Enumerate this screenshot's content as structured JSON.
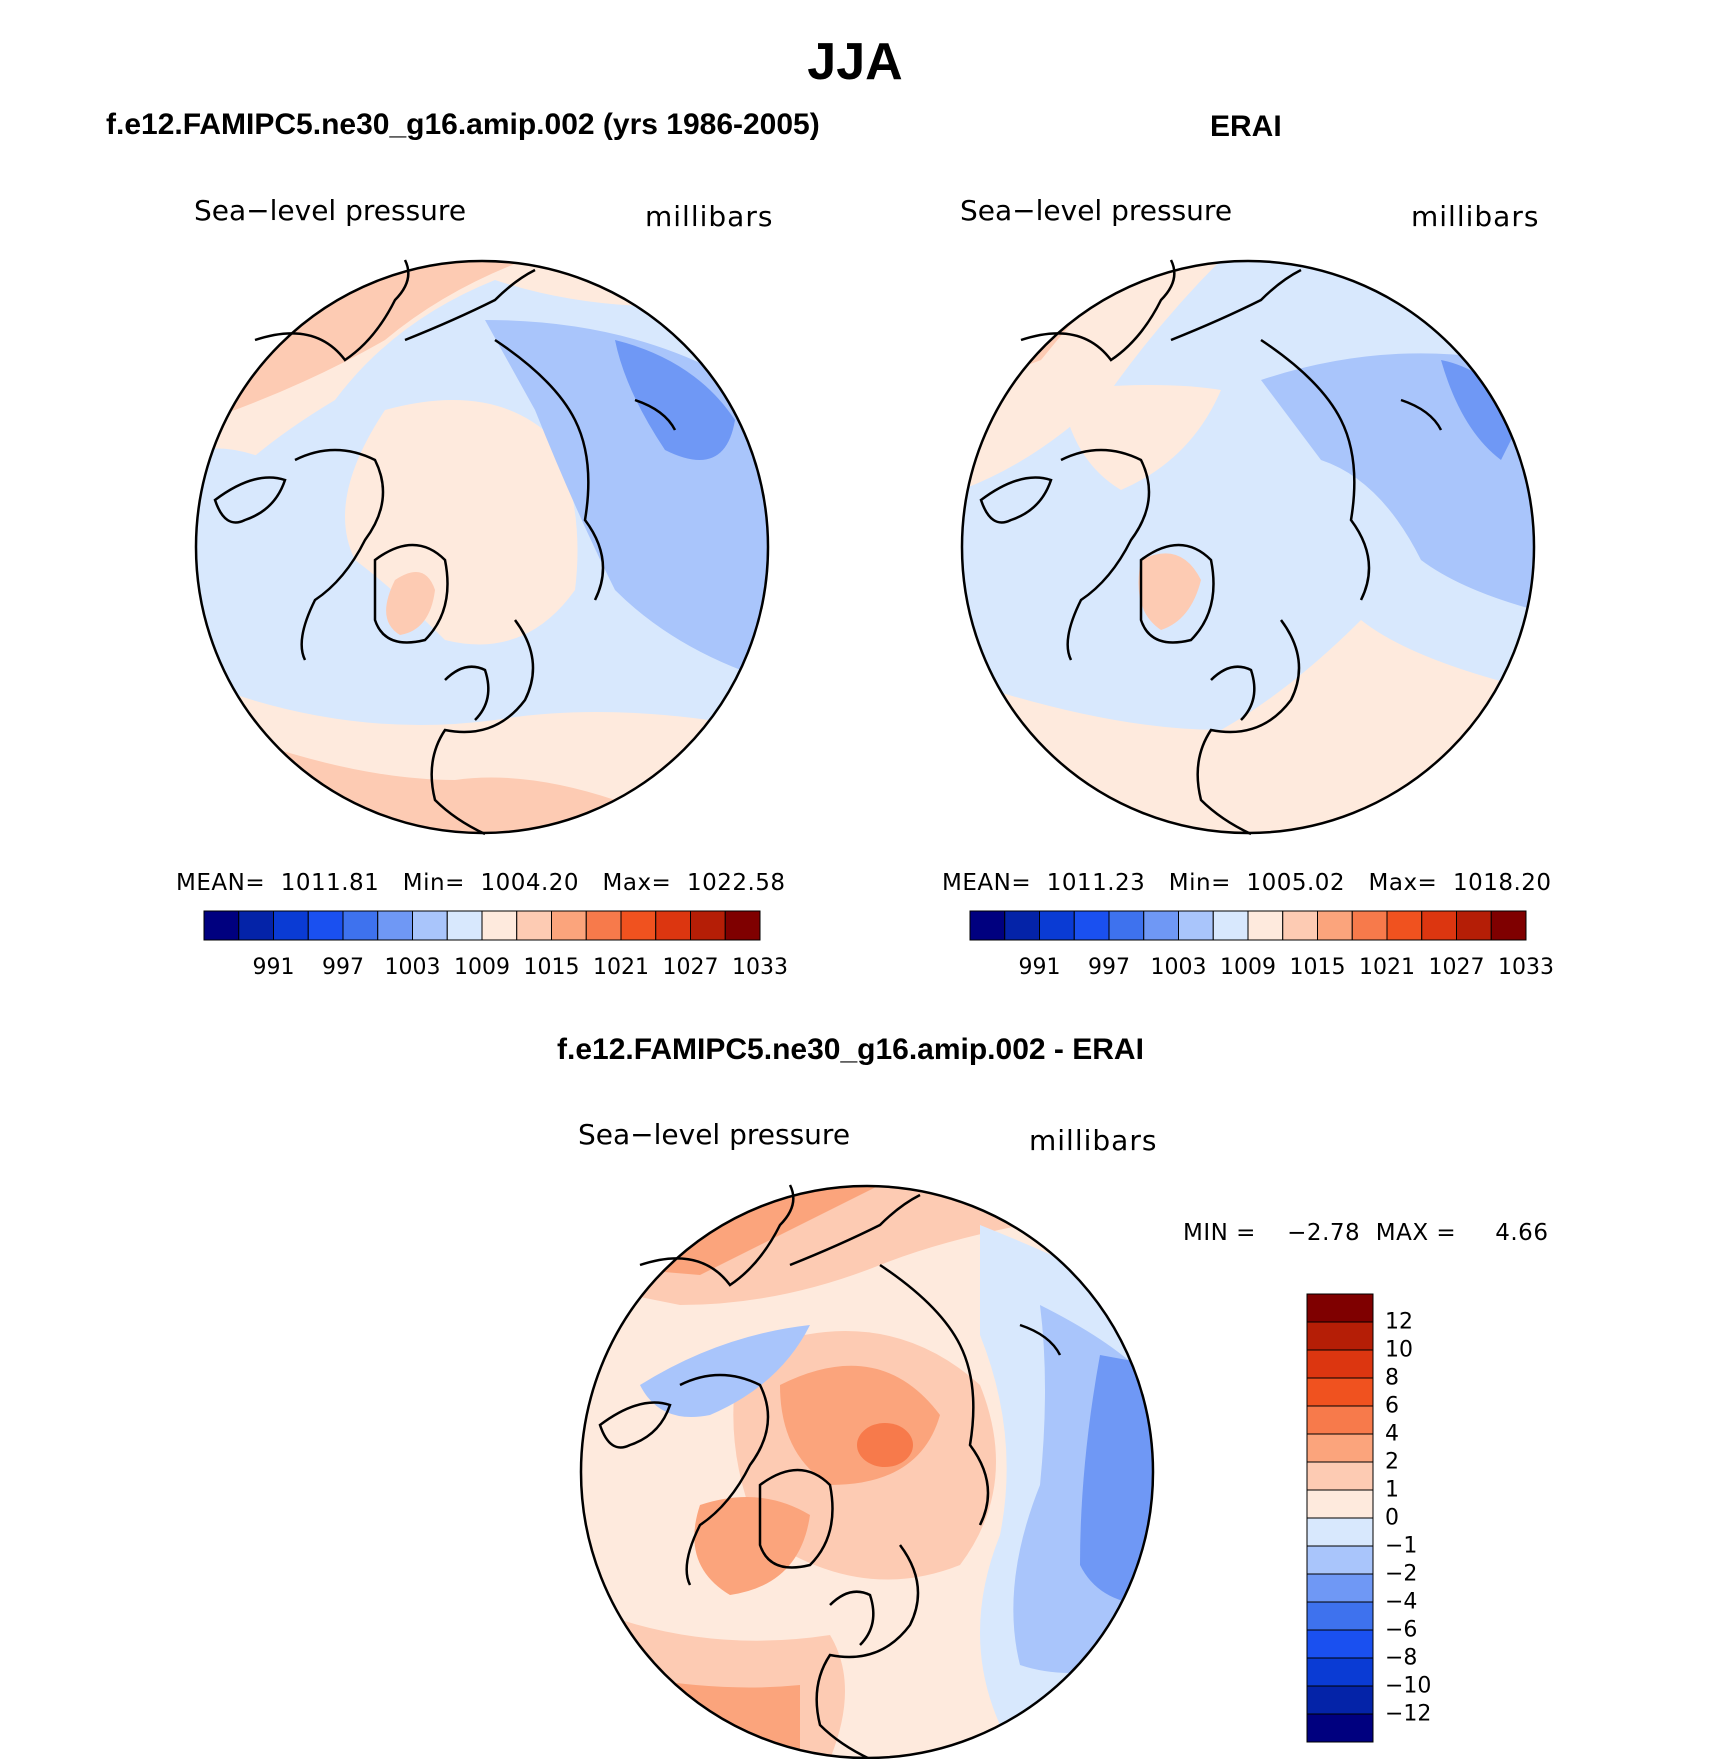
{
  "page": {
    "title": "JJA"
  },
  "colors": {
    "abs_scale": [
      "#00007f",
      "#0423a8",
      "#0a3bd4",
      "#1a50f0",
      "#3e72ee",
      "#6f98f5",
      "#a9c5fb",
      "#d8e8fd",
      "#feeadd",
      "#fdcbb3",
      "#fba47c",
      "#f77a4b",
      "#f0521f",
      "#dc3610",
      "#b51e06",
      "#7f0000"
    ],
    "diff_scale": [
      "#00007f",
      "#0423a8",
      "#0a3bd4",
      "#1a50f0",
      "#3e72ee",
      "#6f98f5",
      "#a9c5fb",
      "#d8e8fd",
      "#feeadd",
      "#fdcbb3",
      "#fba47c",
      "#f77a4b",
      "#f0521f",
      "#dc3610",
      "#b51e06",
      "#7f0000"
    ]
  },
  "panels": {
    "model": {
      "title": "f.e12.FAMIPC5.ne30_g16.amip.002 (yrs 1986-2005)",
      "variable": "Sea−level pressure",
      "units": "millibars",
      "stats": "MEAN=  1011.81   Min=  1004.20   Max=  1022.58",
      "colorbar_labels": [
        "991",
        "997",
        "1003",
        "1009",
        "1015",
        "1021",
        "1027",
        "1033"
      ]
    },
    "obs": {
      "title": "ERAI",
      "variable": "Sea−level pressure",
      "units": "millibars",
      "stats": "MEAN=  1011.23   Min=  1005.02   Max=  1018.20",
      "colorbar_labels": [
        "991",
        "997",
        "1003",
        "1009",
        "1015",
        "1021",
        "1027",
        "1033"
      ]
    },
    "diff": {
      "title": "f.e12.FAMIPC5.ne30_g16.amip.002 - ERAI",
      "variable": "Sea−level pressure",
      "units": "millibars",
      "stats": "MIN =    −2.78  MAX =     4.66",
      "colorbar_labels": [
        "12",
        "10",
        "8",
        "6",
        "4",
        "2",
        "1",
        "0",
        "−1",
        "−2",
        "−4",
        "−6",
        "−8",
        "−10",
        "−12"
      ]
    }
  }
}
